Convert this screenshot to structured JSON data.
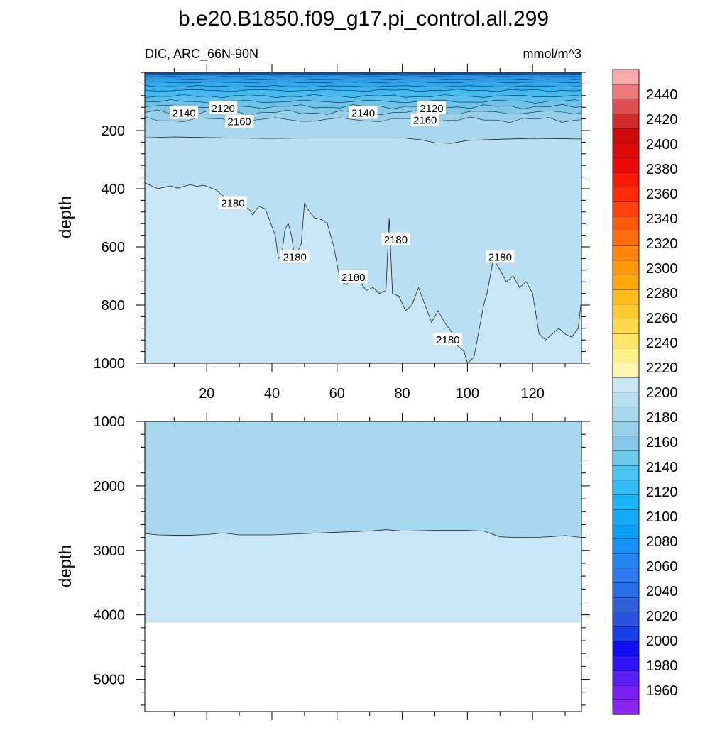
{
  "chart_data": {
    "type": "contour",
    "title": "b.e20.B1850.f09_g17.pi_control.all.299",
    "left_label": "DIC, ARC_66N-90N",
    "right_label": "mmol/m^3",
    "xlim": [
      1,
      135
    ],
    "x_ticks": [
      20,
      40,
      60,
      80,
      100,
      120
    ],
    "contour_labels": [
      {
        "level": 2120,
        "text": "2120",
        "x": 25,
        "depth": 124
      },
      {
        "level": 2140,
        "text": "2140",
        "x": 13,
        "depth": 140
      },
      {
        "level": 2160,
        "text": "2160",
        "x": 30,
        "depth": 170
      },
      {
        "level": 2180,
        "text": "2180",
        "x": 28,
        "depth": 450
      },
      {
        "level": 2120,
        "text": "2120",
        "x": 89,
        "depth": 124
      },
      {
        "level": 2140,
        "text": "2140",
        "x": 68,
        "depth": 140
      },
      {
        "level": 2160,
        "text": "2160",
        "x": 87,
        "depth": 165
      },
      {
        "level": 2180,
        "text": "2180",
        "x": 47,
        "depth": 635
      },
      {
        "level": 2180,
        "text": "2180",
        "x": 65,
        "depth": 705
      },
      {
        "level": 2180,
        "text": "2180",
        "x": 78,
        "depth": 575
      },
      {
        "level": 2180,
        "text": "2180",
        "x": 94,
        "depth": 920
      },
      {
        "level": 2180,
        "text": "2180",
        "x": 110,
        "depth": 635
      }
    ],
    "panels": [
      {
        "name": "upper",
        "ylabel": "depth",
        "ylim": [
          0,
          1000
        ],
        "y_ticks": [
          200,
          400,
          600,
          800,
          1000
        ],
        "surface_contours": [
          {
            "level": 2030,
            "depth": 4
          },
          {
            "level": 2050,
            "depth": 9
          },
          {
            "level": 2070,
            "depth": 15
          },
          {
            "level": 2085,
            "depth": 24
          },
          {
            "level": 2095,
            "depth": 34
          },
          {
            "level": 2105,
            "depth": 48
          },
          {
            "level": 2115,
            "depth": 62
          },
          {
            "level": 2120,
            "depth": 82
          },
          {
            "level": 2130,
            "depth": 100
          },
          {
            "level": 2140,
            "depth": 118
          },
          {
            "level": 2150,
            "depth": 138
          },
          {
            "level": 2160,
            "depth": 163
          }
        ],
        "contour_2170": {
          "x": [
            1,
            10,
            20,
            30,
            40,
            50,
            60,
            70,
            80,
            86,
            90,
            95,
            100,
            110,
            120,
            135
          ],
          "depth": [
            225,
            222,
            224,
            226,
            227,
            226,
            226,
            226,
            225,
            232,
            242,
            244,
            234,
            230,
            227,
            229
          ]
        },
        "contour_2180": {
          "x": [
            1,
            3,
            5,
            7,
            9,
            11,
            13,
            15,
            17,
            19,
            21,
            23,
            25,
            27,
            29,
            31,
            33,
            34,
            36,
            38,
            39,
            41,
            42,
            43,
            44,
            45,
            46,
            47,
            49,
            50,
            51,
            53,
            55,
            57,
            59,
            61,
            63,
            65,
            67,
            69,
            71,
            73,
            75,
            76,
            77,
            79,
            81,
            83,
            85,
            87,
            89,
            91,
            93,
            95,
            97,
            99,
            100,
            101,
            102,
            103,
            104,
            105,
            106,
            107,
            108,
            110,
            112,
            114,
            116,
            118,
            120,
            122,
            124,
            126,
            128,
            130,
            132,
            134,
            135
          ],
          "depth": [
            380,
            390,
            400,
            395,
            390,
            398,
            392,
            386,
            392,
            388,
            396,
            405,
            425,
            440,
            450,
            458,
            470,
            490,
            460,
            470,
            500,
            560,
            640,
            630,
            540,
            520,
            560,
            640,
            590,
            450,
            470,
            500,
            505,
            520,
            600,
            720,
            730,
            700,
            720,
            750,
            740,
            760,
            750,
            500,
            760,
            770,
            820,
            800,
            740,
            800,
            860,
            820,
            860,
            890,
            940,
            960,
            1000,
            990,
            980,
            920,
            860,
            800,
            760,
            700,
            640,
            680,
            720,
            700,
            740,
            720,
            760,
            900,
            920,
            900,
            880,
            900,
            910,
            880,
            780
          ]
        }
      },
      {
        "name": "lower",
        "ylabel": "depth",
        "ylim": [
          1000,
          5500
        ],
        "y_ticks": [
          1000,
          2000,
          3000,
          4000,
          5000
        ],
        "bottom_depth": 4120,
        "contour_2190": {
          "x": [
            1,
            5,
            10,
            15,
            20,
            25,
            30,
            40,
            50,
            60,
            70,
            75,
            80,
            90,
            100,
            105,
            110,
            115,
            120,
            125,
            130,
            135
          ],
          "depth": [
            2740,
            2760,
            2765,
            2765,
            2755,
            2730,
            2760,
            2760,
            2740,
            2720,
            2700,
            2680,
            2700,
            2690,
            2690,
            2700,
            2790,
            2800,
            2800,
            2790,
            2770,
            2800
          ]
        }
      }
    ],
    "colorbar": {
      "levels": [
        1960,
        1980,
        2000,
        2020,
        2040,
        2060,
        2080,
        2100,
        2120,
        2140,
        2160,
        2180,
        2200,
        2220,
        2240,
        2260,
        2280,
        2300,
        2320,
        2340,
        2360,
        2380,
        2400,
        2420,
        2440
      ],
      "colors": [
        "#8c24f0",
        "#7a1ef2",
        "#5a1ef5",
        "#3015f7",
        "#0f0ff2",
        "#1a3ee8",
        "#2a52dd",
        "#3060d8",
        "#2a6ee8",
        "#2d7af0",
        "#2386f2",
        "#1592f5",
        "#08a0f5",
        "#10acf5",
        "#19b6f5",
        "#30bef5",
        "#48c6f2",
        "#6ec8ec",
        "#86c8e8",
        "#98d0ec",
        "#a8d8f0",
        "#b8e0f2",
        "#c9e6f6",
        "#fff4b0",
        "#fff08a",
        "#ffe66a",
        "#ffd84c",
        "#ffca2c",
        "#ffbc1a",
        "#ffaa0c",
        "#ff9808",
        "#ff8406",
        "#ff6e08",
        "#ff5a0a",
        "#ff420a",
        "#ff2a08",
        "#f81808",
        "#ec0a08",
        "#de0808",
        "#d00808",
        "#d22a2a",
        "#e05050",
        "#ec7878",
        "#f8aaaa"
      ]
    }
  }
}
